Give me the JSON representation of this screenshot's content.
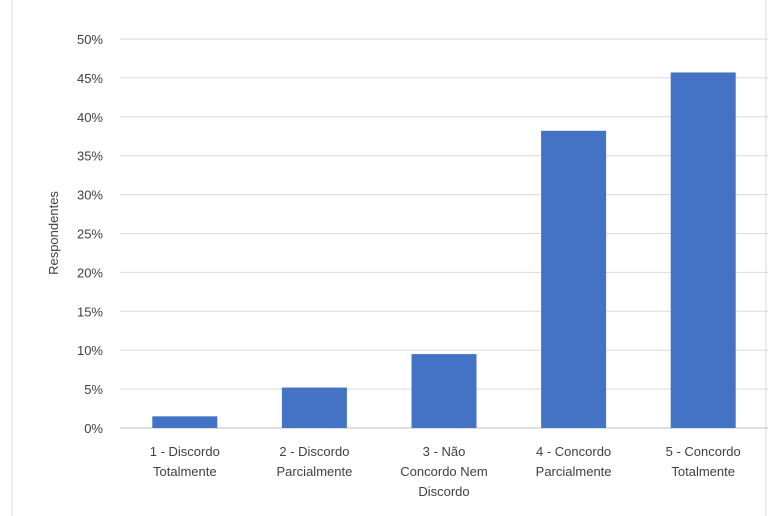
{
  "chart_data": {
    "type": "bar",
    "ylabel": "Respondentes",
    "xlabel": "",
    "title": "",
    "categories": [
      [
        "1 - Discordo",
        "Totalmente"
      ],
      [
        "2 - Discordo",
        "Parcialmente"
      ],
      [
        "3 - Não",
        "Concordo Nem",
        "Discordo"
      ],
      [
        "4 - Concordo",
        "Parcialmente"
      ],
      [
        "5 - Concordo",
        "Totalmente"
      ]
    ],
    "values": [
      1.5,
      5.2,
      9.5,
      38.2,
      45.7
    ],
    "ylim": [
      0,
      50
    ],
    "yticks": [
      "0%",
      "5%",
      "10%",
      "15%",
      "20%",
      "25%",
      "30%",
      "35%",
      "40%",
      "45%",
      "50%"
    ],
    "grid": true,
    "bar_color": "#4472c4"
  }
}
